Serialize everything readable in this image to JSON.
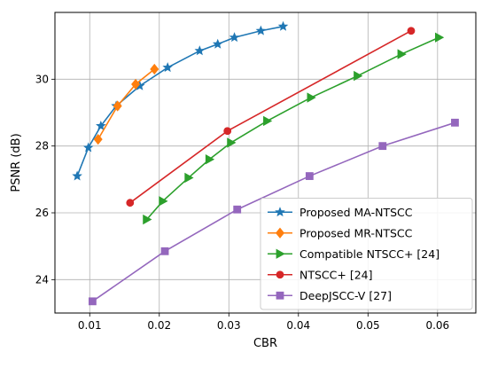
{
  "chart_data": {
    "type": "line",
    "xlabel": "CBR",
    "ylabel": "PSNR (dB)",
    "xlim": [
      0.005,
      0.0655
    ],
    "ylim": [
      23.0,
      32.0
    ],
    "xticks": [
      0.01,
      0.02,
      0.03,
      0.04,
      0.05,
      0.06
    ],
    "xtick_labels": [
      "0.01",
      "0.02",
      "0.03",
      "0.04",
      "0.05",
      "0.06"
    ],
    "yticks": [
      24,
      26,
      28,
      30
    ],
    "ytick_labels": [
      "24",
      "26",
      "28",
      "30"
    ],
    "grid": true,
    "legend_position": "lower-right",
    "series": [
      {
        "name": "Proposed MA-NTSCC",
        "color": "#1f77b4",
        "marker": "star",
        "x": [
          0.0082,
          0.0098,
          0.0116,
          0.0138,
          0.0172,
          0.0212,
          0.0258,
          0.0284,
          0.0308,
          0.0346,
          0.0378
        ],
        "y": [
          27.1,
          27.95,
          28.6,
          29.2,
          29.8,
          30.35,
          30.85,
          31.05,
          31.25,
          31.45,
          31.58
        ]
      },
      {
        "name": "Proposed MR-NTSCC",
        "color": "#ff7f0e",
        "marker": "diamond",
        "x": [
          0.0112,
          0.014,
          0.0166,
          0.0193
        ],
        "y": [
          28.2,
          29.2,
          29.85,
          30.3
        ]
      },
      {
        "name": "Compatible NTSCC+ [24]",
        "color": "#2ca02c",
        "marker": "triangle-right",
        "x": [
          0.0182,
          0.0205,
          0.0242,
          0.0272,
          0.0303,
          0.0355,
          0.0418,
          0.0485,
          0.0548,
          0.0602
        ],
        "y": [
          25.8,
          26.35,
          27.05,
          27.6,
          28.1,
          28.75,
          29.45,
          30.1,
          30.75,
          31.25
        ]
      },
      {
        "name": "NTSCC+ [24]",
        "color": "#d62728",
        "marker": "circle",
        "x": [
          0.0158,
          0.0298,
          0.0562
        ],
        "y": [
          26.3,
          28.45,
          31.45
        ]
      },
      {
        "name": "DeepJSCC-V [27]",
        "color": "#9467bd",
        "marker": "square",
        "x": [
          0.0104,
          0.0208,
          0.0312,
          0.0416,
          0.0521,
          0.0625
        ],
        "y": [
          23.35,
          24.85,
          26.1,
          27.1,
          28.0,
          28.7
        ]
      }
    ]
  }
}
